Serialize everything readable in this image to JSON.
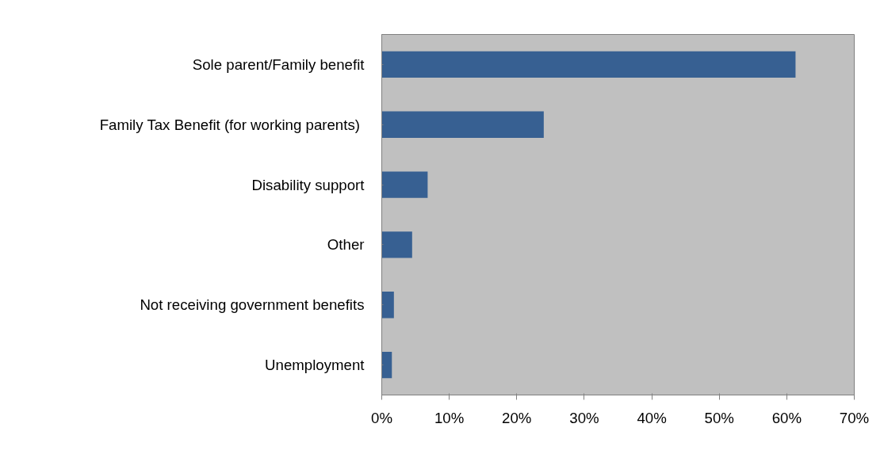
{
  "chart_data": {
    "type": "bar",
    "orientation": "horizontal",
    "categories": [
      "Sole parent/Family benefit",
      "Family Tax Benefit  (for working parents)",
      "Disability support",
      "Other",
      "Not receiving government benefits",
      "Unemployment"
    ],
    "values": [
      61.3,
      24.0,
      6.8,
      4.5,
      1.8,
      1.5
    ],
    "color": "#376092",
    "xlim": [
      0,
      70
    ],
    "xticks": [
      {
        "value": 0,
        "label": "0%"
      },
      {
        "value": 10,
        "label": "10%"
      },
      {
        "value": 20,
        "label": "20%"
      },
      {
        "value": 30,
        "label": "30%"
      },
      {
        "value": 40,
        "label": "40%"
      },
      {
        "value": 50,
        "label": "50%"
      },
      {
        "value": 60,
        "label": "60%"
      },
      {
        "value": 70,
        "label": "70%"
      }
    ],
    "grid": false
  }
}
